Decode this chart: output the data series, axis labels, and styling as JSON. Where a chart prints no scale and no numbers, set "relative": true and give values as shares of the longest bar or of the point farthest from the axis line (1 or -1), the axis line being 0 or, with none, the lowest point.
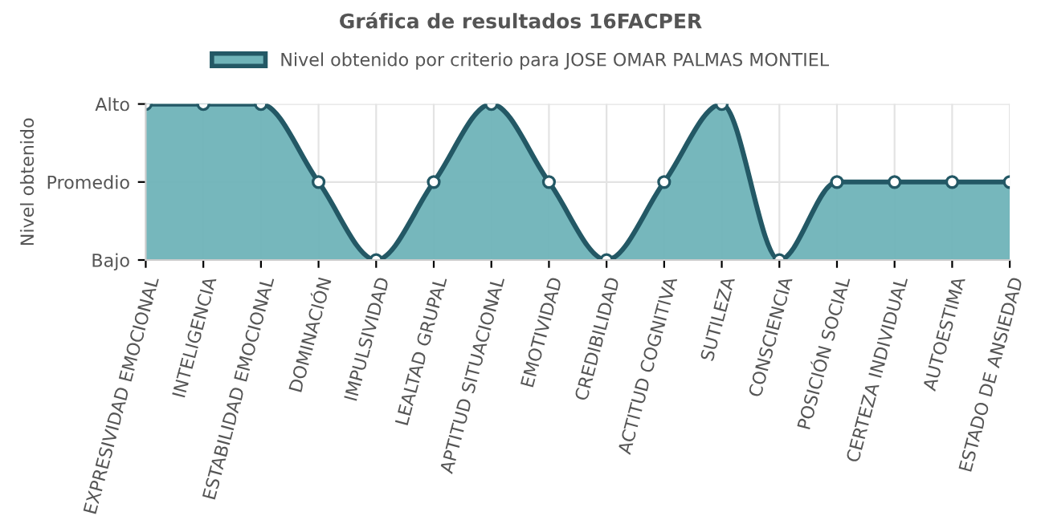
{
  "chart_data": {
    "type": "area",
    "title": "Gráfica de resultados 16FACPER",
    "ylabel": "Nivel obtenido",
    "categories": [
      "EXPRESIVIDAD EMOCIONAL",
      "INTELIGENCIA",
      "ESTABILIDAD EMOCIONAL",
      "DOMINACIÓN",
      "IMPULSIVIDAD",
      "LEALTAD GRUPAL",
      "APTITUD SITUACIONAL",
      "EMOTIVIDAD",
      "CREDIBILIDAD",
      "ACTITUD COGNITIVA",
      "SUTILEZA",
      "CONSCIENCIA",
      "POSICIÓN SOCIAL",
      "CERTEZA INDIVIDUAL",
      "AUTOESTIMA",
      "ESTADO DE ANSIEDAD"
    ],
    "series": [
      {
        "name": "Nivel obtenido por criterio para JOSE OMAR PALMAS MONTIEL",
        "color": "#6fb3b8",
        "values": [
          1,
          1,
          1,
          0.5,
          0,
          0.5,
          1,
          0.5,
          0,
          0.5,
          1,
          0,
          0.5,
          0.5,
          0.5,
          0.5
        ]
      }
    ],
    "relative": true,
    "y_categories": [
      "Alto",
      "Promedio",
      "Bajo"
    ],
    "grid": true,
    "legend": "top",
    "marker": "circle",
    "line_style": "solid"
  }
}
